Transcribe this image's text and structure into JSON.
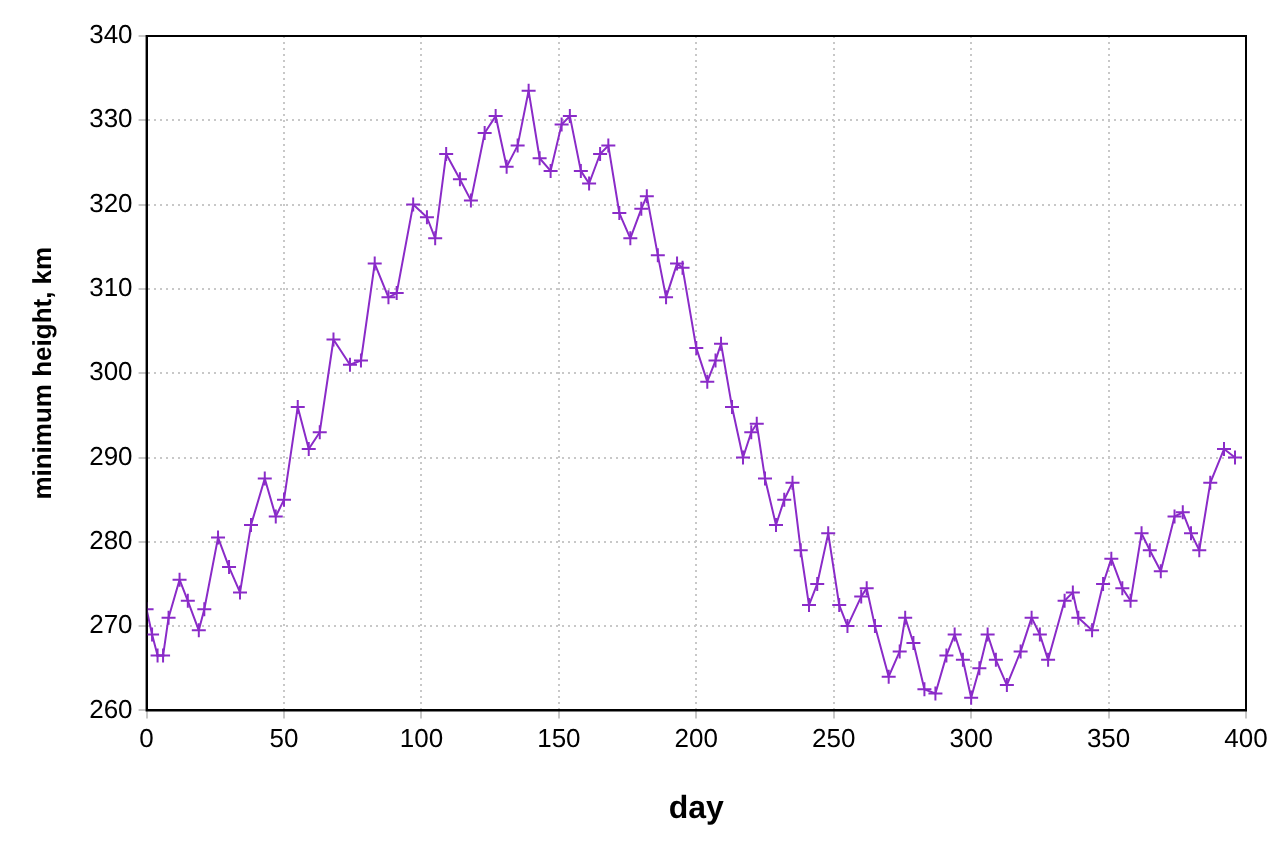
{
  "chart_data": {
    "type": "line",
    "xlabel": "day",
    "ylabel": "minimum height, km",
    "xlim": [
      0,
      400
    ],
    "xticks": [
      0,
      50,
      100,
      150,
      200,
      250,
      300,
      350,
      400
    ],
    "ylim": [
      260,
      340
    ],
    "yticks": [
      260,
      270,
      280,
      290,
      300,
      310,
      320,
      330,
      340
    ],
    "grid": true,
    "legend": false,
    "marker": "cross",
    "line_style": "solid",
    "series": [
      {
        "color": "#8a2bc8",
        "x": [
          0,
          2,
          4,
          6,
          8,
          12,
          15,
          19,
          21,
          26,
          30,
          34,
          38,
          43,
          47,
          50,
          55,
          59,
          63,
          68,
          74,
          78,
          83,
          88,
          91,
          97,
          102,
          105,
          109,
          114,
          118,
          123,
          127,
          131,
          135,
          139,
          143,
          147,
          151,
          154,
          158,
          161,
          165,
          168,
          172,
          176,
          180,
          182,
          186,
          189,
          193,
          195,
          200,
          204,
          207,
          209,
          213,
          217,
          220,
          222,
          225,
          229,
          232,
          235,
          238,
          241,
          244,
          248,
          252,
          255,
          260,
          262,
          265,
          270,
          274,
          276,
          279,
          283,
          287,
          291,
          294,
          297,
          300,
          303,
          306,
          309,
          313,
          318,
          322,
          325,
          328,
          334,
          337,
          339,
          344,
          348,
          351,
          355,
          358,
          362,
          365,
          369,
          374,
          377,
          380,
          383,
          387,
          392,
          396
        ],
        "values": [
          272,
          269,
          266.5,
          266.5,
          271,
          275.5,
          273,
          269.5,
          272,
          280.5,
          277,
          274,
          282,
          287.5,
          283,
          285,
          296,
          291,
          293,
          304,
          301,
          301.5,
          313,
          309,
          309.5,
          320,
          318.5,
          316,
          326,
          323,
          320.5,
          328.5,
          330.5,
          324.5,
          327,
          333.5,
          325.5,
          324,
          329.5,
          330.5,
          324,
          322.5,
          326,
          327,
          319,
          316,
          319.5,
          321,
          314,
          309,
          313,
          312.5,
          303,
          299,
          301.5,
          303.5,
          296,
          290,
          293,
          294,
          287.5,
          282,
          285,
          287,
          279,
          272.5,
          275,
          281,
          272.5,
          270,
          273.5,
          274.5,
          270,
          264,
          267,
          271,
          268,
          262.5,
          262,
          266.5,
          269,
          266,
          261.5,
          265,
          269,
          266,
          263,
          267,
          271,
          269,
          266,
          273,
          274,
          271,
          269.5,
          275,
          278,
          274.5,
          273,
          281,
          279,
          276.5,
          283,
          283.5,
          281,
          279,
          287,
          291,
          290
        ]
      }
    ]
  }
}
